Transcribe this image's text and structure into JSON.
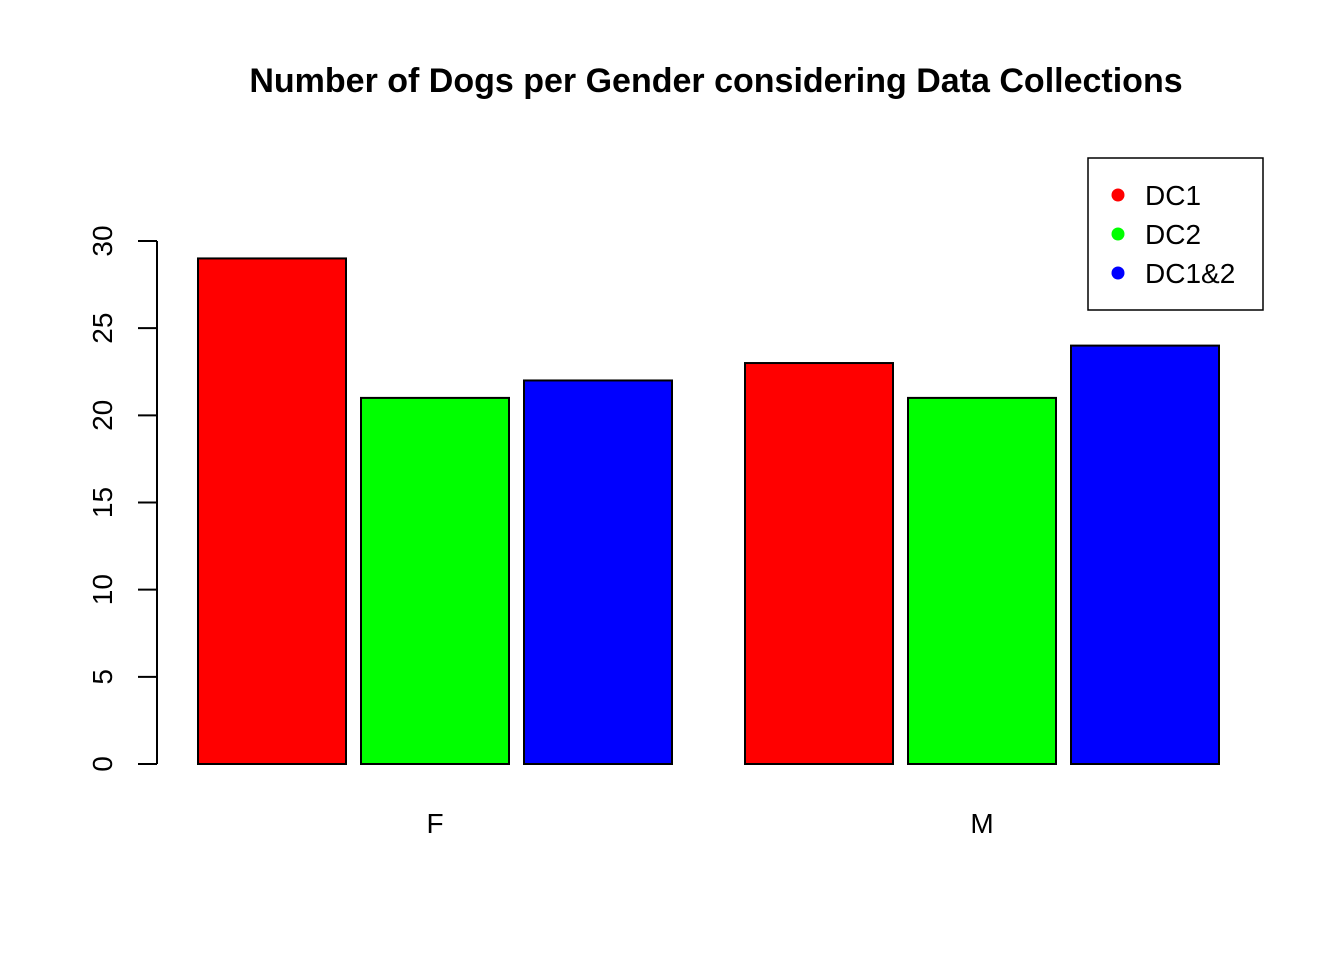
{
  "chart_data": {
    "type": "bar",
    "title": "Number of Dogs per Gender considering Data Collections",
    "xlabel": "",
    "ylabel": "",
    "categories": [
      "F",
      "M"
    ],
    "series": [
      {
        "name": "DC1",
        "values": [
          29,
          23
        ],
        "color": "#ff0000"
      },
      {
        "name": "DC2",
        "values": [
          21,
          21
        ],
        "color": "#00ff00"
      },
      {
        "name": "DC1&2",
        "values": [
          22,
          24
        ],
        "color": "#0000ff"
      }
    ],
    "ylim": [
      0,
      30
    ],
    "yticks": [
      "0",
      "5",
      "10",
      "15",
      "20",
      "25",
      "30"
    ],
    "grid": false,
    "legend_position": "top-right"
  }
}
